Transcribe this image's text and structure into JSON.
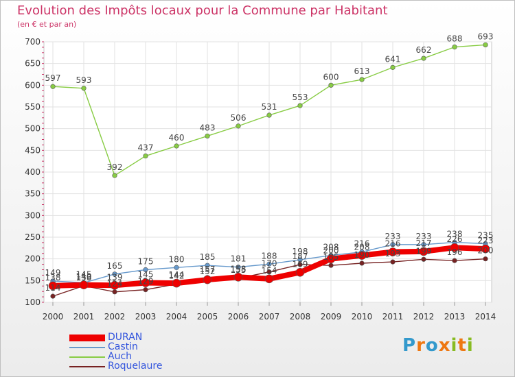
{
  "chart_data": {
    "type": "line",
    "title": "Evolution des Impôts locaux pour la Commune par Habitant",
    "subtitle": "(en € et par an)",
    "xlabel": "",
    "ylabel": "",
    "ylim": [
      100,
      700
    ],
    "yticks": [
      100,
      150,
      200,
      250,
      300,
      350,
      400,
      450,
      500,
      550,
      600,
      650,
      700
    ],
    "categories": [
      "2000",
      "2001",
      "2002",
      "2003",
      "2004",
      "2005",
      "2006",
      "2007",
      "2008",
      "2009",
      "2010",
      "2011",
      "2012",
      "2013",
      "2014"
    ],
    "series": [
      {
        "name": "Auch",
        "color": "#88cc44",
        "values": [
          597,
          593,
          392,
          437,
          460,
          483,
          506,
          531,
          553,
          600,
          613,
          641,
          662,
          688,
          693
        ]
      },
      {
        "name": "Castin",
        "color": "#6699cc",
        "values": [
          149,
          145,
          165,
          175,
          180,
          185,
          181,
          188,
          198,
          208,
          216,
          233,
          233,
          238,
          235
        ]
      },
      {
        "name": "Roquelaure",
        "color": "#772222",
        "values": [
          114,
          138,
          124,
          129,
          142,
          157,
          155,
          170,
          187,
          185,
          190,
          193,
          199,
          196,
          200
        ]
      },
      {
        "name": "DURAN",
        "color": "#ee0000",
        "values": [
          138,
          140,
          139,
          145,
          144,
          152,
          158,
          154,
          169,
          200,
          208,
          216,
          217,
          226,
          223
        ]
      }
    ],
    "legend": [
      {
        "name": "DURAN",
        "color": "#ee0000"
      },
      {
        "name": "Castin",
        "color": "#6699cc"
      },
      {
        "name": "Auch",
        "color": "#88cc44"
      },
      {
        "name": "Roquelaure",
        "color": "#772222"
      }
    ]
  },
  "logo": {
    "text": "Proxiti",
    "letters": [
      "P",
      "r",
      "o",
      "x",
      "i",
      "t",
      "i"
    ],
    "colors": [
      "#3399cc",
      "#ee7711",
      "#3399cc",
      "#ee7711",
      "#88bb22",
      "#ee7711",
      "#88bb22"
    ]
  }
}
